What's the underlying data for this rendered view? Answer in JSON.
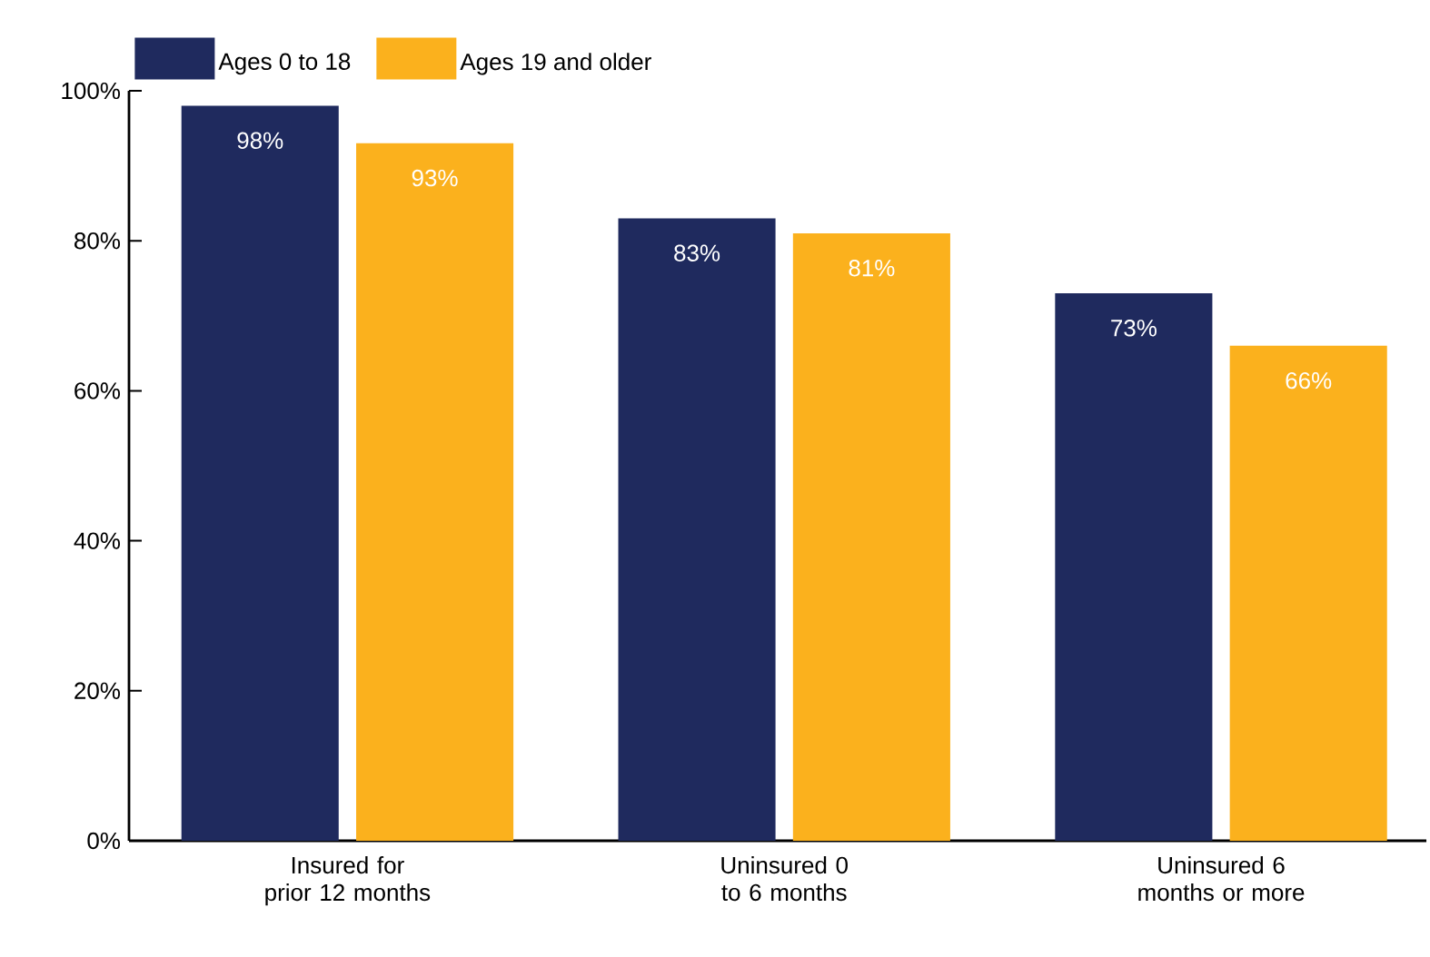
{
  "chart_data": {
    "type": "bar",
    "categories": [
      "Insured for prior 12 months",
      "Uninsured 0 to 6 months",
      "Uninsured 6 months or more"
    ],
    "series": [
      {
        "name": "Ages 0 to 18",
        "color": "#1f2a5e",
        "values": [
          98,
          83,
          73
        ],
        "value_labels": [
          "98%",
          "83%",
          "73%"
        ]
      },
      {
        "name": "Ages 19 and older",
        "color": "#fbb11d",
        "values": [
          93,
          81,
          66
        ],
        "value_labels": [
          "93%",
          "81%",
          "66%"
        ]
      }
    ],
    "ylim": [
      0,
      100
    ],
    "yticks": [
      {
        "value": 0,
        "label": "0%"
      },
      {
        "value": 20,
        "label": "20%"
      },
      {
        "value": 40,
        "label": "40%"
      },
      {
        "value": 60,
        "label": "60%"
      },
      {
        "value": 80,
        "label": "80%"
      },
      {
        "value": 100,
        "label": "100%"
      }
    ],
    "grid": false,
    "legend": "top left"
  }
}
